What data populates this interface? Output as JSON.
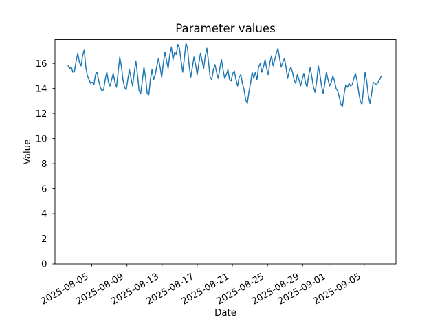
{
  "figure": {
    "background": "#ffffff",
    "axis_color": "#000000",
    "text_color": "#000000"
  },
  "chart_data": {
    "type": "line",
    "title": "Parameter values",
    "xlabel": "Date",
    "ylabel": "Value",
    "grid": false,
    "legend": null,
    "x_axis": {
      "kind": "date",
      "epoch": "2025-08-01",
      "xlim_days": [
        -0.19,
        38.62
      ],
      "tick_days": [
        4,
        8,
        12,
        16,
        20,
        24,
        28,
        31,
        35
      ],
      "tick_labels": [
        "2025-08-05",
        "2025-08-09",
        "2025-08-13",
        "2025-08-17",
        "2025-08-21",
        "2025-08-25",
        "2025-08-29",
        "2025-09-01",
        "2025-09-05"
      ],
      "tick_label_rotation": 30
    },
    "y_axis": {
      "ylim": [
        0,
        17.9
      ],
      "ticks": [
        0,
        2,
        4,
        6,
        8,
        10,
        12,
        14,
        16
      ],
      "tick_labels": [
        "0",
        "2",
        "4",
        "6",
        "8",
        "10",
        "12",
        "14",
        "16"
      ]
    },
    "series": [
      {
        "name": "Parameter",
        "color": "#1f77b4",
        "line_width": 1.5,
        "x_first_date": "2025-08-02",
        "x_last_date": "2025-09-07",
        "x_data_range_days": [
          1.3,
          36.95
        ],
        "values": [
          15.8,
          15.6,
          15.7,
          15.3,
          15.4,
          16.2,
          16.8,
          16.1,
          15.8,
          16.6,
          17.1,
          15.7,
          15.0,
          14.7,
          14.4,
          14.5,
          14.3,
          15.1,
          15.3,
          14.6,
          14.1,
          13.8,
          13.9,
          14.7,
          15.3,
          14.5,
          14.2,
          14.7,
          15.2,
          14.5,
          14.1,
          15.3,
          16.5,
          15.8,
          14.7,
          14.1,
          13.9,
          14.7,
          15.5,
          14.8,
          14.2,
          15.3,
          16.2,
          15.1,
          13.8,
          13.6,
          14.6,
          15.7,
          14.9,
          13.6,
          13.5,
          14.7,
          15.5,
          14.7,
          15.1,
          15.8,
          16.4,
          15.7,
          14.9,
          16.0,
          16.9,
          16.2,
          15.6,
          16.7,
          17.3,
          16.3,
          16.9,
          16.7,
          17.5,
          17.2,
          16.2,
          15.3,
          16.4,
          17.6,
          17.2,
          15.8,
          14.9,
          15.7,
          16.5,
          15.9,
          15.1,
          16.0,
          16.8,
          16.2,
          15.6,
          16.6,
          17.2,
          16.1,
          14.9,
          14.7,
          15.5,
          15.9,
          15.3,
          14.8,
          15.6,
          16.3,
          15.5,
          14.8,
          15.1,
          15.5,
          14.7,
          14.6,
          15.2,
          15.4,
          14.7,
          14.2,
          14.9,
          15.1,
          14.4,
          13.9,
          13.1,
          12.8,
          13.7,
          14.4,
          15.3,
          14.8,
          15.3,
          14.7,
          15.7,
          16.0,
          15.3,
          15.7,
          16.3,
          15.6,
          15.1,
          16.1,
          16.6,
          15.8,
          16.3,
          16.8,
          17.2,
          16.4,
          15.7,
          16.1,
          16.4,
          15.7,
          14.8,
          15.4,
          15.7,
          15.3,
          14.7,
          14.4,
          15.1,
          14.7,
          14.2,
          14.7,
          15.2,
          14.5,
          14.1,
          15.0,
          15.7,
          14.9,
          14.1,
          13.7,
          14.6,
          15.8,
          15.1,
          14.2,
          13.6,
          14.4,
          15.3,
          14.7,
          14.2,
          14.5,
          15.0,
          14.6,
          14.0,
          13.8,
          13.3,
          12.7,
          12.6,
          13.6,
          14.3,
          14.1,
          14.4,
          14.2,
          14.3,
          14.8,
          15.2,
          14.6,
          13.7,
          13.0,
          12.7,
          14.0,
          15.3,
          14.5,
          13.4,
          12.8,
          13.6,
          14.5,
          14.4,
          14.3,
          14.5,
          14.7,
          15.0
        ]
      }
    ]
  }
}
